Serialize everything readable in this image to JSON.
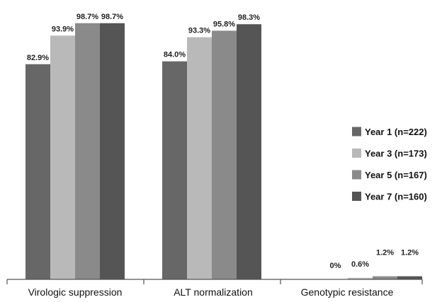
{
  "chart_data": {
    "type": "bar",
    "categories": [
      "Virologic suppression",
      "ALT normalization",
      "Genotypic resistance"
    ],
    "series": [
      {
        "name": "Year 1 (n=222)",
        "values": [
          82.9,
          84.0,
          0
        ],
        "labels": [
          "82.9%",
          "84.0%",
          "0%"
        ],
        "color": "#676767"
      },
      {
        "name": "Year 3 (n=173)",
        "values": [
          93.9,
          93.3,
          0.6
        ],
        "labels": [
          "93.9%",
          "93.3%",
          "0.6%"
        ],
        "color": "#b9b9b9"
      },
      {
        "name": "Year 5 (n=167)",
        "values": [
          98.7,
          95.8,
          1.2
        ],
        "labels": [
          "98.7%",
          "95.8%",
          "1.2%"
        ],
        "color": "#8a8a8a"
      },
      {
        "name": "Year 7 (n=160)",
        "values": [
          98.7,
          98.3,
          1.2
        ],
        "labels": [
          "98.7%",
          "98.3%",
          "1.2%"
        ],
        "color": "#555555"
      }
    ],
    "ylim": [
      0,
      100
    ],
    "grid": false,
    "legend_position": "right"
  }
}
